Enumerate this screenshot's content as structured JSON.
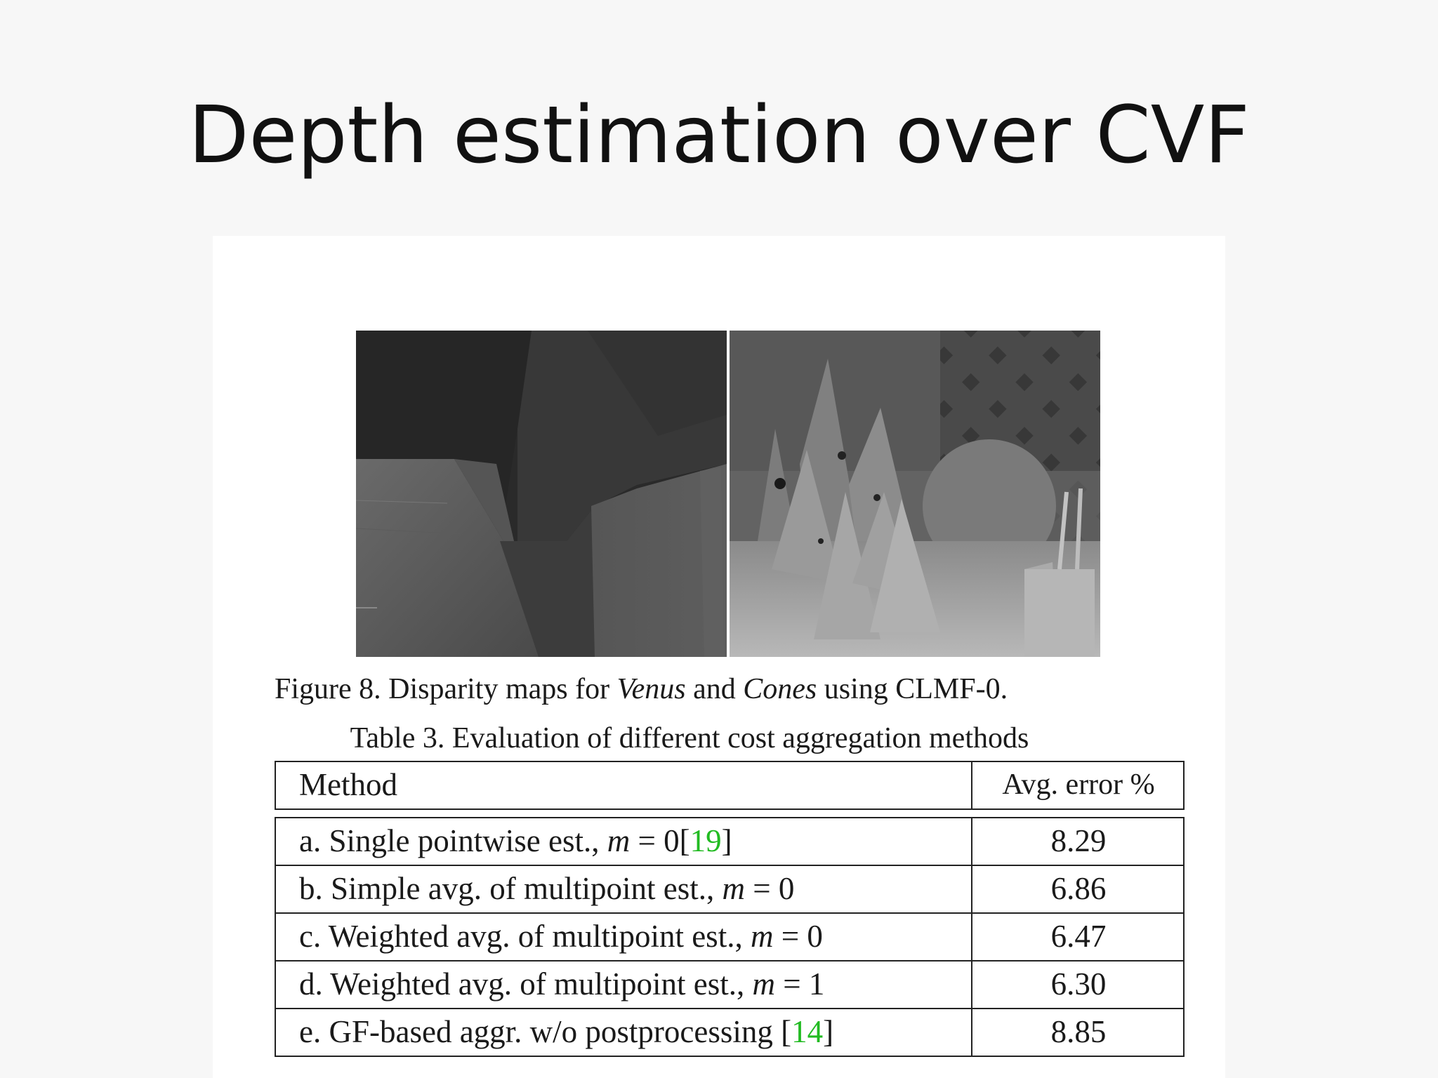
{
  "slide": {
    "title": "Depth estimation over CVF"
  },
  "figure": {
    "caption_prefix": "Figure 8.  Disparity maps for ",
    "caption_venus": "Venus",
    "caption_and": " and ",
    "caption_cones": "Cones",
    "caption_suffix": " using CLMF-0."
  },
  "table": {
    "caption": "Table 3. Evaluation of different cost aggregation methods",
    "header": {
      "method": "Method",
      "error": "Avg. error %"
    },
    "rows": [
      {
        "prefix": "a. Single pointwise est., ",
        "var": "m",
        "eq": " = 0",
        "cite_open": "[",
        "cite": "19",
        "cite_close": "]",
        "value": "8.29"
      },
      {
        "prefix": "b. Simple avg. of multipoint est., ",
        "var": "m",
        "eq": " = 0",
        "value": "6.86"
      },
      {
        "prefix": "c. Weighted avg. of multipoint est., ",
        "var": "m",
        "eq": " = 0",
        "value": "6.47"
      },
      {
        "prefix": "d. Weighted avg. of multipoint est., ",
        "var": "m",
        "eq": " = 1",
        "value": "6.30"
      },
      {
        "prefix": "e. GF-based aggr.  w/o postprocessing ",
        "cite_open": "[",
        "cite": "14",
        "cite_close": "]",
        "value": "8.85"
      }
    ]
  },
  "colors": {
    "citation": "#22bb22",
    "slide_background": "#f7f7f7",
    "panel_background": "#ffffff"
  }
}
